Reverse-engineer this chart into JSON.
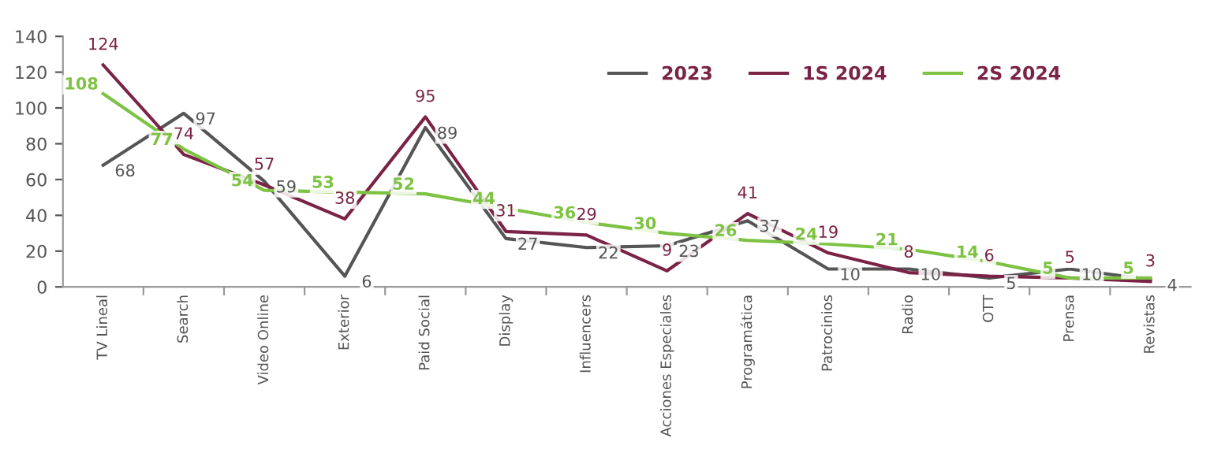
{
  "chart_data": {
    "type": "line",
    "categories": [
      "TV Lineal",
      "Search",
      "Video Online",
      "Exterior",
      "Paid Social",
      "Display",
      "Influencers",
      "Acciones Especiales",
      "Programática",
      "Patrocinios",
      "Radio",
      "OTT",
      "Prensa",
      "Revistas"
    ],
    "series": [
      {
        "name": "2023",
        "color": "#555555",
        "values": [
          68,
          97,
          59,
          6,
          89,
          27,
          22,
          23,
          37,
          10,
          10,
          5,
          10,
          4
        ]
      },
      {
        "name": "1S 2024",
        "color": "#7b2346",
        "values": [
          124,
          74,
          57,
          38,
          95,
          31,
          29,
          9,
          41,
          19,
          8,
          6,
          5,
          3
        ]
      },
      {
        "name": "2S 2024",
        "color": "#7dc242",
        "values": [
          108,
          77,
          54,
          53,
          52,
          44,
          36,
          30,
          26,
          24,
          21,
          14,
          5,
          5
        ]
      }
    ],
    "ylim": [
      0,
      140
    ],
    "yticks": [
      0,
      20,
      40,
      60,
      80,
      100,
      120,
      140
    ],
    "data_labels": true,
    "grid": false,
    "legend": "top right",
    "marker": "none",
    "line_style": "solid"
  }
}
